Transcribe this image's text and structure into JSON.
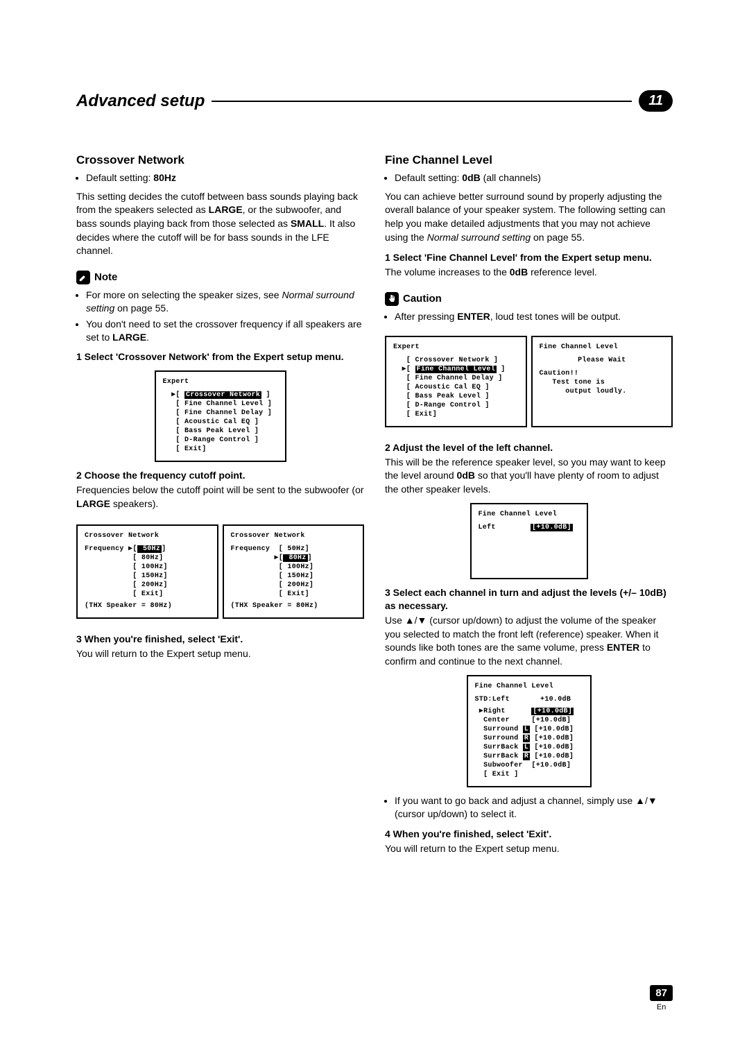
{
  "header": {
    "title": "Advanced setup",
    "chapter": "11"
  },
  "page": {
    "number": "87",
    "lang": "En"
  },
  "left": {
    "section": "Crossover Network",
    "default_label": "Default setting: ",
    "default_value": "80Hz",
    "intro_a": "This setting decides the cutoff between bass sounds playing back from the speakers selected as ",
    "intro_b": ", or the subwoofer, and bass sounds playing back from those selected as ",
    "intro_c": ". It also decides where the cutoff will be for bass sounds in the LFE channel.",
    "large": "LARGE",
    "small": "SMALL",
    "note_label": "Note",
    "note1_a": "For more on selecting the speaker sizes, see ",
    "note1_b": "Normal surround setting",
    "note1_c": " on page 55.",
    "note2_a": "You don't need to set the crossover frequency if all speakers are set to ",
    "note2_b": "LARGE",
    "note2_c": ".",
    "step1": "1   Select 'Crossover Network' from the Expert setup menu.",
    "step2": "2   Choose the frequency cutoff point.",
    "step2_body_a": "Frequencies below the cutoff point will be sent to the subwoofer (or ",
    "step2_body_b": "LARGE",
    "step2_body_c": " speakers).",
    "step3": "3   When you're finished, select 'Exit'.",
    "step3_body": "You will return to the Expert setup menu.",
    "osd1": {
      "title": "Expert",
      "items": [
        "Crossover Network",
        "Fine Channel Level",
        "Fine Channel Delay",
        "Acoustic Cal EQ",
        "Bass Peak Level",
        "D-Range Control",
        "Exit"
      ],
      "selected": 0
    },
    "osd2a": {
      "title": "Crossover Network",
      "label": "Frequency",
      "opts": [
        "50Hz",
        "80Hz",
        "100Hz",
        "150Hz",
        "200Hz",
        "Exit"
      ],
      "selected": 0,
      "footer": "(THX Speaker = 80Hz)"
    },
    "osd2b": {
      "title": "Crossover Network",
      "label": "Frequency",
      "opts": [
        "50Hz",
        "80Hz",
        "100Hz",
        "150Hz",
        "200Hz",
        "Exit"
      ],
      "selected": 1,
      "footer": "(THX Speaker = 80Hz)"
    }
  },
  "right": {
    "section": "Fine Channel Level",
    "default_label": "Default setting: ",
    "default_value": "0dB",
    "default_suffix": " (all channels)",
    "intro_a": "You can achieve better surround sound by properly adjusting the overall balance of your speaker system. The following setting can help you make detailed adjustments that you may not achieve using the ",
    "intro_b": "Normal surround setting",
    "intro_c": " on page 55.",
    "step1": "1   Select 'Fine Channel Level' from the Expert setup menu.",
    "step1_body_a": "The volume increases to the ",
    "step1_body_b": "0dB",
    "step1_body_c": " reference level.",
    "caution_label": "Caution",
    "caution_a": "After pressing ",
    "caution_b": "ENTER",
    "caution_c": ", loud test tones will be output.",
    "step2": "2   Adjust the level of the left channel.",
    "step2_body_a": "This will be the reference speaker level, so you may want to keep the level around ",
    "step2_body_b": "0dB",
    "step2_body_c": " so that you'll have plenty of room to adjust the other speaker levels.",
    "step3": "3   Select each channel in turn and adjust the levels (+/– 10dB) as necessary.",
    "step3_body_a": "Use ",
    "step3_arrows": "▲/▼",
    "step3_body_b": " (cursor up/down) to adjust the volume of the speaker you selected to match the front left (reference) speaker. When it sounds like both tones are the same volume, press ",
    "step3_body_c": "ENTER",
    "step3_body_d": " to confirm and continue to the next channel.",
    "tip_a": "If you want to go back and adjust a channel, simply use ",
    "tip_b": "▲/▼",
    "tip_c": " (cursor up/down) to select it.",
    "step4": "4   When you're finished, select 'Exit'.",
    "step4_body": "You will return to the Expert setup menu.",
    "osd1a": {
      "title": "Expert",
      "items": [
        "Crossover Network",
        "Fine Channel Level",
        "Fine Channel Delay",
        "Acoustic Cal EQ",
        "Bass Peak Level",
        "D-Range Control",
        "Exit"
      ],
      "selected": 1
    },
    "osd1b": {
      "title": "Fine Channel Level",
      "line1": "Please Wait",
      "line2": "Caution!!",
      "line3": "Test tone is",
      "line4": "output loudly."
    },
    "osd2": {
      "title": "Fine Channel Level",
      "label": "Left",
      "value": "+10.0dB"
    },
    "osd3": {
      "title": "Fine Channel Level",
      "ref": "STD:Left       +10.0dB",
      "rows": [
        {
          "n": "Right",
          "s": "",
          "v": "+10.0dB",
          "hl": true
        },
        {
          "n": "Center",
          "s": "",
          "v": "+10.0dB"
        },
        {
          "n": "Surround",
          "s": "L",
          "v": "+10.0dB"
        },
        {
          "n": "Surround",
          "s": "R",
          "v": "+10.0dB"
        },
        {
          "n": "SurrBack",
          "s": "L",
          "v": "+10.0dB"
        },
        {
          "n": "SurrBack",
          "s": "R",
          "v": "+10.0dB"
        },
        {
          "n": "Subwoofer",
          "s": "",
          "v": "+10.0dB"
        }
      ],
      "exit": "[ Exit ]"
    }
  }
}
